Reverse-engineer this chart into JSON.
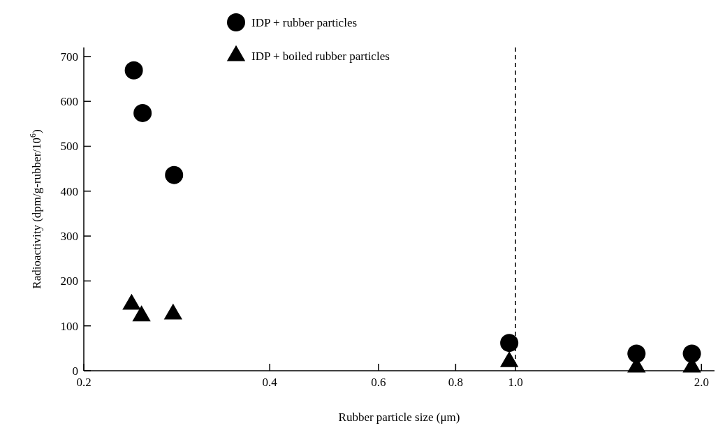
{
  "chart_data": {
    "type": "scatter",
    "xlabel": "Rubber particle size (μm)",
    "ylabel": "Radioactivity (dpm/g-rubber/10$^{6}$)",
    "log": "x",
    "xlim": [
      0.2,
      2.1
    ],
    "xticks": [
      0.2,
      0.4,
      0.6,
      0.8,
      {
        "value": 1.0,
        "label": "1.0"
      },
      {
        "value": 2.0,
        "label": "2.0"
      }
    ],
    "ylim": [
      0,
      720
    ],
    "yticks": [
      0,
      100,
      200,
      300,
      400,
      500,
      600,
      700
    ],
    "grid": false,
    "legend": "top",
    "ref_lines": [
      {
        "axis": "x",
        "value": 1.0,
        "line_style": "dashed",
        "color": "#000000"
      }
    ],
    "series": [
      {
        "name": "IDP + rubber particles",
        "color": "#000000",
        "marker": "circle",
        "x": [
          0.241,
          0.249,
          0.28,
          0.977,
          1.57,
          1.93
        ],
        "values": [
          669,
          574,
          436,
          62,
          38,
          38
        ]
      },
      {
        "name": "IDP + boiled rubber particles",
        "color": "#000000",
        "marker": "triangle",
        "x": [
          0.239,
          0.248,
          0.279,
          0.977,
          1.57,
          1.93
        ],
        "values": [
          148,
          122,
          126,
          20,
          8,
          8
        ]
      }
    ]
  }
}
